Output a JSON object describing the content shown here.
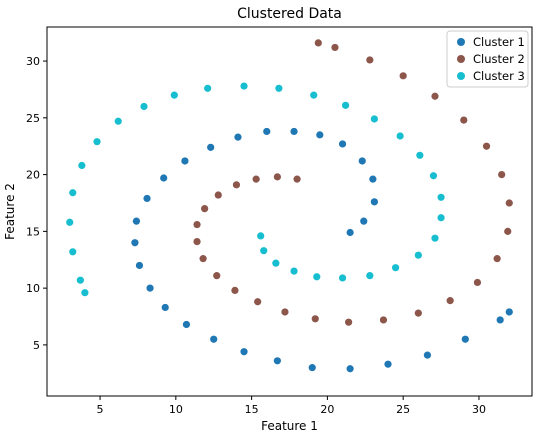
{
  "chart_data": {
    "type": "scatter",
    "title": "Clustered Data",
    "xlabel": "Feature 1",
    "ylabel": "Feature 2",
    "xlim": [
      1.5,
      33.5
    ],
    "ylim": [
      0.5,
      33.0
    ],
    "xticks": [
      5,
      10,
      15,
      20,
      25,
      30
    ],
    "yticks": [
      5,
      10,
      15,
      20,
      25,
      30
    ],
    "grid": false,
    "legend_position": "top-right",
    "series": [
      {
        "name": "Cluster 1",
        "color": "#1f77b4",
        "points": [
          [
            21.5,
            14.9
          ],
          [
            22.4,
            15.9
          ],
          [
            23.1,
            17.6
          ],
          [
            23.0,
            19.6
          ],
          [
            22.3,
            21.2
          ],
          [
            21.0,
            22.7
          ],
          [
            19.5,
            23.5
          ],
          [
            17.8,
            23.8
          ],
          [
            16.0,
            23.8
          ],
          [
            14.1,
            23.3
          ],
          [
            12.3,
            22.4
          ],
          [
            10.6,
            21.2
          ],
          [
            9.2,
            19.7
          ],
          [
            8.1,
            17.9
          ],
          [
            7.4,
            15.9
          ],
          [
            7.3,
            14.0
          ],
          [
            7.6,
            12.0
          ],
          [
            8.3,
            10.0
          ],
          [
            9.3,
            8.3
          ],
          [
            10.7,
            6.8
          ],
          [
            12.5,
            5.5
          ],
          [
            14.5,
            4.4
          ],
          [
            16.7,
            3.6
          ],
          [
            19.0,
            3.0
          ],
          [
            21.5,
            2.9
          ],
          [
            24.0,
            3.3
          ],
          [
            26.6,
            4.1
          ],
          [
            29.1,
            5.5
          ],
          [
            31.4,
            7.2
          ],
          [
            32.0,
            7.9
          ]
        ]
      },
      {
        "name": "Cluster 2",
        "color": "#8c564b",
        "points": [
          [
            18.0,
            19.6
          ],
          [
            16.7,
            19.8
          ],
          [
            15.3,
            19.6
          ],
          [
            14.0,
            19.1
          ],
          [
            12.8,
            18.2
          ],
          [
            11.9,
            17.0
          ],
          [
            11.4,
            15.6
          ],
          [
            11.4,
            14.1
          ],
          [
            11.8,
            12.6
          ],
          [
            12.7,
            11.1
          ],
          [
            13.9,
            9.8
          ],
          [
            15.4,
            8.8
          ],
          [
            17.2,
            7.9
          ],
          [
            19.2,
            7.3
          ],
          [
            21.4,
            7.0
          ],
          [
            23.7,
            7.2
          ],
          [
            26.0,
            7.8
          ],
          [
            28.1,
            8.9
          ],
          [
            29.9,
            10.5
          ],
          [
            31.2,
            12.6
          ],
          [
            31.9,
            15.0
          ],
          [
            32.0,
            17.5
          ],
          [
            31.5,
            20.0
          ],
          [
            30.5,
            22.5
          ],
          [
            29.0,
            24.8
          ],
          [
            27.1,
            26.9
          ],
          [
            25.0,
            28.7
          ],
          [
            22.8,
            30.1
          ],
          [
            20.5,
            31.2
          ],
          [
            19.4,
            31.6
          ]
        ]
      },
      {
        "name": "Cluster 3",
        "color": "#17becf",
        "points": [
          [
            15.6,
            14.6
          ],
          [
            15.8,
            13.3
          ],
          [
            16.6,
            12.2
          ],
          [
            17.8,
            11.5
          ],
          [
            19.3,
            11.0
          ],
          [
            21.0,
            10.9
          ],
          [
            22.8,
            11.1
          ],
          [
            24.5,
            11.8
          ],
          [
            26.0,
            12.9
          ],
          [
            27.1,
            14.4
          ],
          [
            27.5,
            16.2
          ],
          [
            27.5,
            18.0
          ],
          [
            27.0,
            19.9
          ],
          [
            26.1,
            21.7
          ],
          [
            24.8,
            23.4
          ],
          [
            23.1,
            24.9
          ],
          [
            21.2,
            26.1
          ],
          [
            19.1,
            27.0
          ],
          [
            16.8,
            27.6
          ],
          [
            14.5,
            27.8
          ],
          [
            12.1,
            27.6
          ],
          [
            9.9,
            27.0
          ],
          [
            7.9,
            26.0
          ],
          [
            6.2,
            24.7
          ],
          [
            4.8,
            22.9
          ],
          [
            3.8,
            20.8
          ],
          [
            3.2,
            18.4
          ],
          [
            3.0,
            15.8
          ],
          [
            3.2,
            13.2
          ],
          [
            3.7,
            10.7
          ],
          [
            4.0,
            9.6
          ]
        ]
      }
    ]
  }
}
